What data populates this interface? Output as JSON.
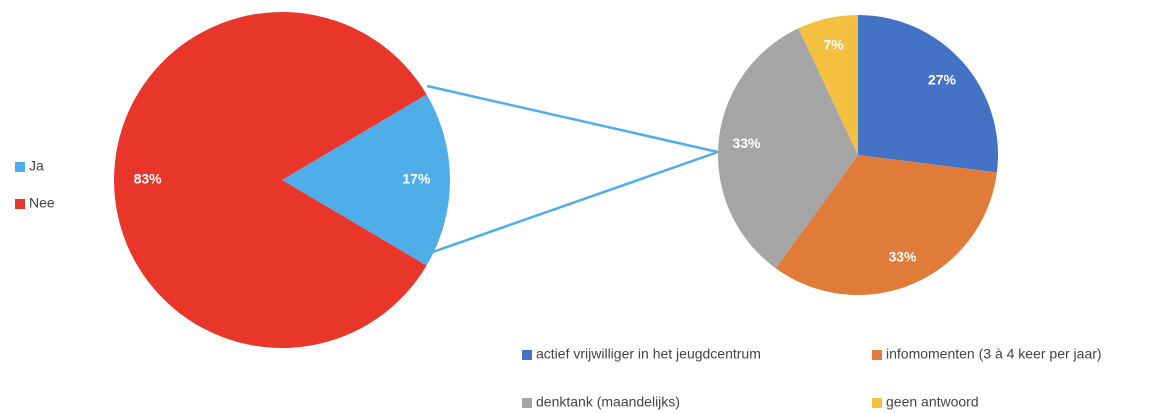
{
  "chart_data": [
    {
      "type": "pie",
      "categories": [
        "Ja",
        "Nee"
      ],
      "values": [
        17,
        83
      ],
      "value_labels": [
        "17%",
        "83%"
      ],
      "colors": [
        "#4faeea",
        "#e8372a"
      ],
      "legend": "left"
    },
    {
      "type": "pie",
      "categories": [
        "actief vrijwilliger in het jeugdcentrum",
        "infomomenten (3 à 4 keer per jaar)",
        "denktank (maandelijks)",
        "geen antwoord"
      ],
      "values": [
        27,
        33,
        33,
        7
      ],
      "value_labels": [
        "27%",
        "33%",
        "33%",
        "7%"
      ],
      "colors": [
        "#4472c4",
        "#e07b39",
        "#a5a5a5",
        "#f4c040"
      ],
      "legend": "bottom"
    }
  ]
}
